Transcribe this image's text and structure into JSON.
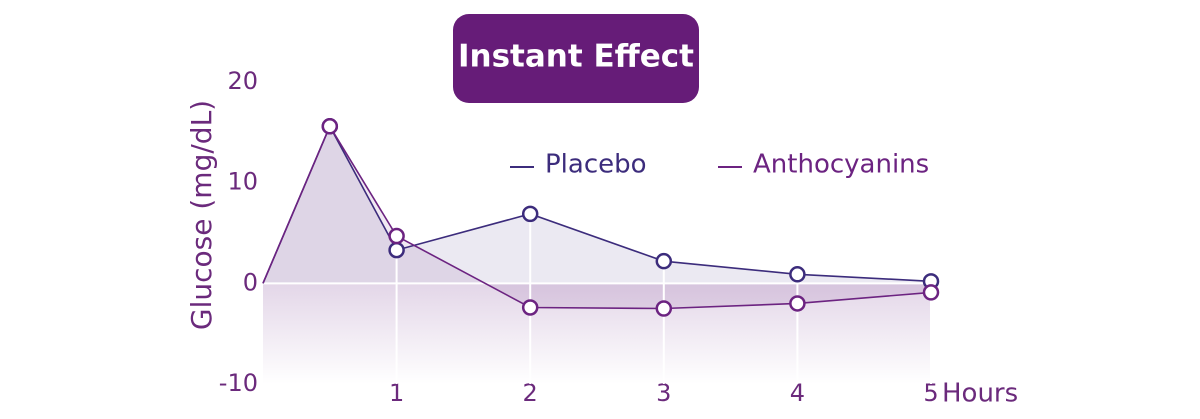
{
  "chart_data": {
    "type": "line",
    "title": "Instant Effect",
    "y_label": "Glucose (mg/dL)",
    "x_label": "Hours",
    "x": [
      0,
      0.5,
      1,
      2,
      3,
      4,
      5
    ],
    "series": [
      {
        "name": "Placebo",
        "color": "#3c2c7c",
        "values": [
          0,
          15.6,
          3.3,
          6.9,
          2.2,
          0.9,
          0.2
        ]
      },
      {
        "name": "Anthocyanins",
        "color": "#6c2381",
        "values": [
          0,
          15.6,
          4.7,
          -2.4,
          -2.5,
          -2.0,
          -0.9
        ]
      }
    ],
    "xlim": [
      0,
      5
    ],
    "xticks": [
      1,
      2,
      3,
      4,
      5
    ],
    "ylim": [
      -10,
      20
    ],
    "yticks": [
      20,
      10,
      0,
      -10
    ],
    "grid": true
  }
}
